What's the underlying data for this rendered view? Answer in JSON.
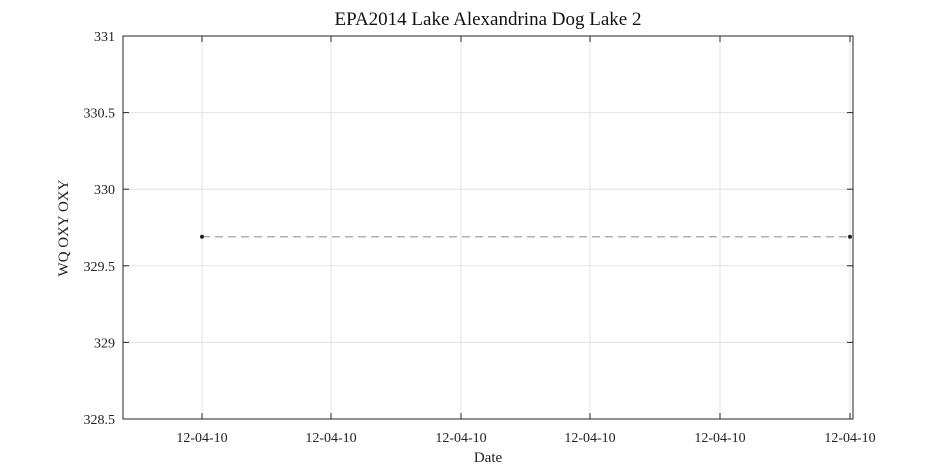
{
  "chart_data": {
    "type": "line",
    "title": "EPA2014 Lake Alexandrina Dog Lake 2",
    "xlabel": "Date",
    "ylabel": "WQ OXY OXY",
    "ylim": [
      328.5,
      331
    ],
    "yticks": [
      "328.5",
      "329",
      "329.5",
      "330",
      "330.5",
      "331"
    ],
    "xticks": [
      "12-04-10",
      "12-04-10",
      "12-04-10",
      "12-04-10",
      "12-04-10",
      "12-04-10"
    ],
    "grid": true,
    "series": [
      {
        "style": "dashed",
        "color": "#b0b0b0",
        "marker_color": "#222222",
        "points": [
          {
            "x": "12-04-10",
            "y": 329.69
          },
          {
            "x": "12-04-10",
            "y": 329.69
          }
        ]
      }
    ]
  }
}
